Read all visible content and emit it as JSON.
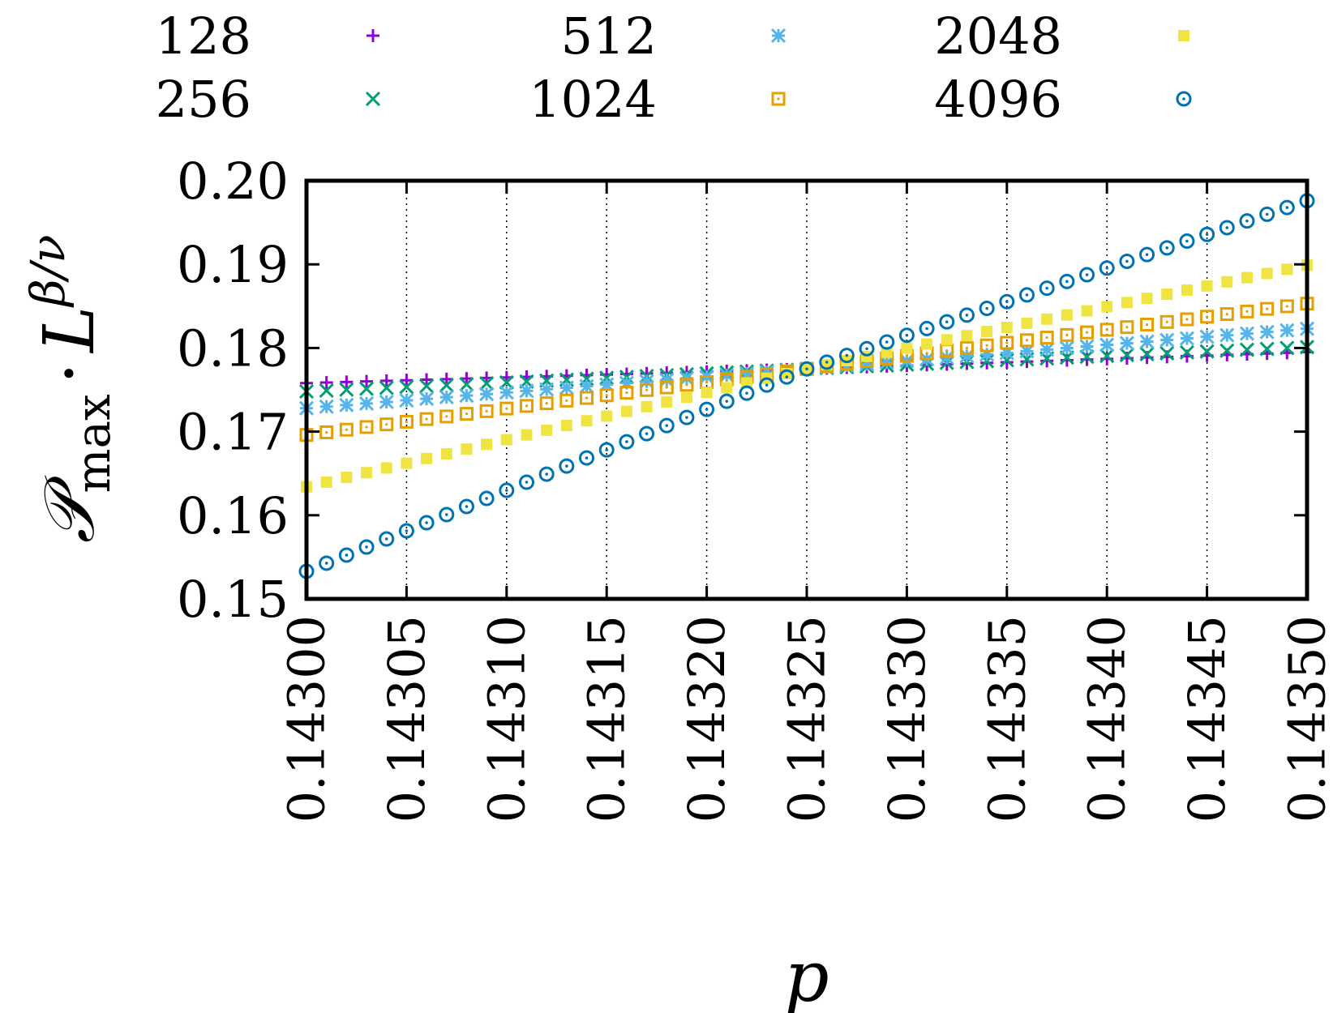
{
  "chart_data": {
    "type": "scatter",
    "xlabel": "p",
    "ylabel": {
      "main": "𝒫",
      "subscript": "max",
      "dot": "·",
      "base": "L",
      "superscript": "β/ν"
    },
    "xlim": [
      0.143,
      0.1435
    ],
    "ylim": [
      0.15,
      0.2
    ],
    "x_ticks": [
      "0.14300",
      "0.14305",
      "0.14310",
      "0.14315",
      "0.14320",
      "0.14325",
      "0.14330",
      "0.14335",
      "0.14340",
      "0.14345",
      "0.14350"
    ],
    "y_ticks": [
      "0.15",
      "0.16",
      "0.17",
      "0.18",
      "0.19",
      "0.20"
    ],
    "grid": "vertical-dotted",
    "legend_position": "top",
    "x_start": 0.143,
    "x_step": 1e-05,
    "n_points": 51,
    "series": [
      {
        "name": "128",
        "marker": "plus",
        "color": "#9400d3",
        "value_at_start": 0.1758,
        "value_at_end": 0.1795,
        "cross_x": 0.14325,
        "cross_y": 0.1775
      },
      {
        "name": "256",
        "marker": "cross",
        "color": "#009e73",
        "value_at_start": 0.1748,
        "value_at_end": 0.1801,
        "cross_x": 0.14325,
        "cross_y": 0.1775
      },
      {
        "name": "512",
        "marker": "star",
        "color": "#56b4e9",
        "value_at_start": 0.1728,
        "value_at_end": 0.1823,
        "cross_x": 0.14325,
        "cross_y": 0.1775
      },
      {
        "name": "1024",
        "marker": "open-square",
        "color": "#e69f00",
        "value_at_start": 0.1696,
        "value_at_end": 0.1853,
        "cross_x": 0.14325,
        "cross_y": 0.1775
      },
      {
        "name": "2048",
        "marker": "filled-square",
        "color": "#f0e442",
        "value_at_start": 0.1634,
        "value_at_end": 0.1899,
        "cross_x": 0.14325,
        "cross_y": 0.1775
      },
      {
        "name": "4096",
        "marker": "open-circle",
        "color": "#0072b2",
        "value_at_start": 0.1533,
        "value_at_end": 0.1976,
        "cross_x": 0.14325,
        "cross_y": 0.1775
      }
    ]
  }
}
